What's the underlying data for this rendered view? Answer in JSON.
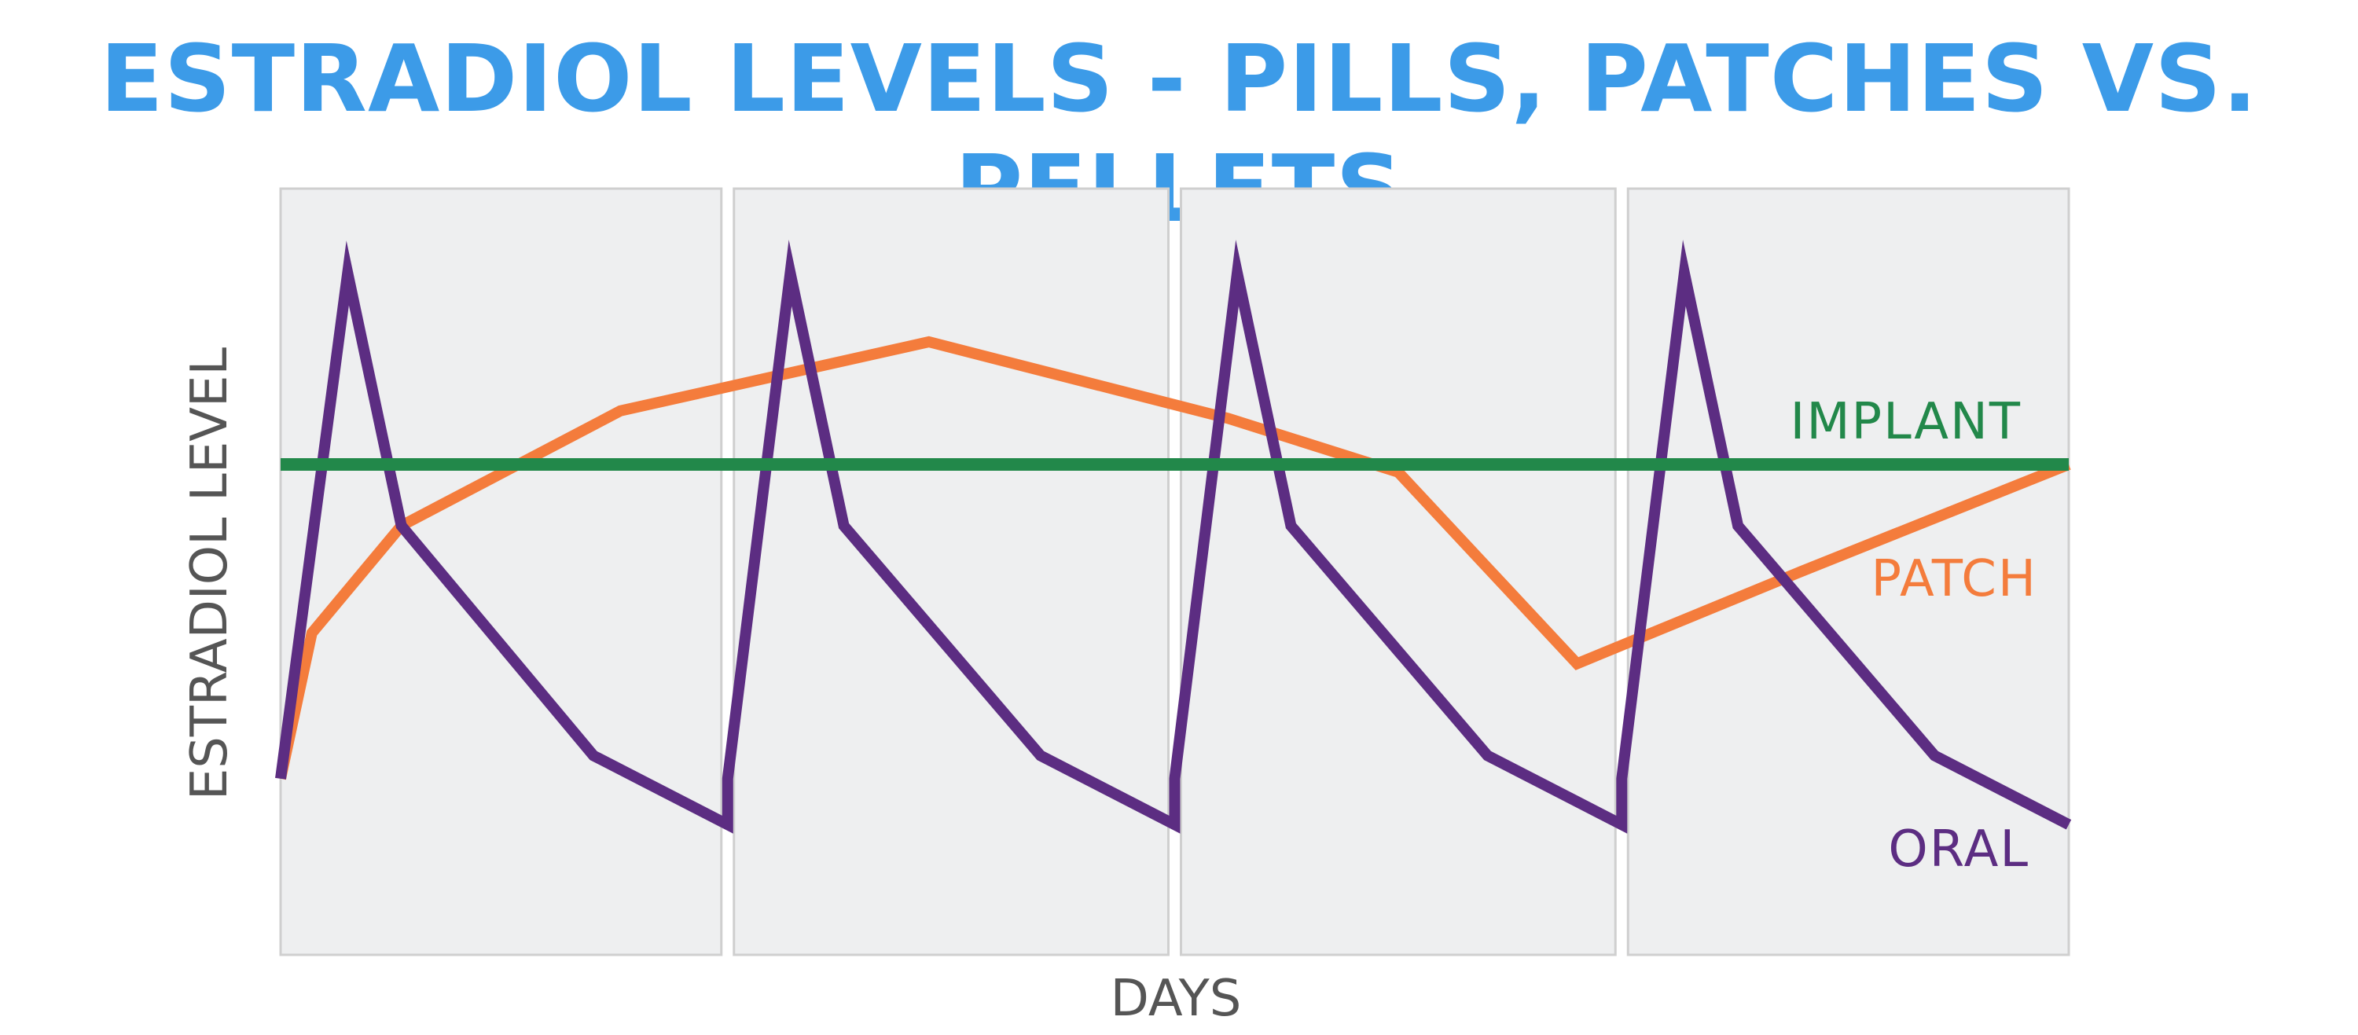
{
  "chart_data": {
    "type": "line",
    "title": "ESTRADIOL LEVELS - PILLS, PATCHES VS. PELLETS",
    "xlabel": "DAYS",
    "ylabel": "ESTRADIOL LEVEL",
    "xlim": [
      0,
      4
    ],
    "ylim": [
      0,
      1
    ],
    "grid": false,
    "panels": 4,
    "series": [
      {
        "name": "IMPLANT",
        "color": "#22884a",
        "x": [
          0,
          4
        ],
        "y": [
          0.64,
          0.64
        ]
      },
      {
        "name": "PATCH",
        "color": "#f47c3c",
        "x": [
          0,
          0.07,
          0.27,
          0.76,
          1.45,
          2.12,
          2.5,
          2.9,
          3.4,
          4.0
        ],
        "y": [
          0.23,
          0.42,
          0.56,
          0.71,
          0.8,
          0.7,
          0.63,
          0.38,
          0.5,
          0.64
        ]
      },
      {
        "name": "ORAL",
        "color": "#5c2d82",
        "x": [
          0,
          0.15,
          0.27,
          0.7,
          1.0,
          1.0,
          1.14,
          1.26,
          1.7,
          2.0,
          2.0,
          2.14,
          2.26,
          2.7,
          3.0,
          3.0,
          3.14,
          3.26,
          3.7,
          4.0
        ],
        "y": [
          0.23,
          0.89,
          0.56,
          0.26,
          0.17,
          0.23,
          0.89,
          0.56,
          0.26,
          0.17,
          0.23,
          0.89,
          0.56,
          0.26,
          0.17,
          0.23,
          0.89,
          0.56,
          0.26,
          0.17
        ]
      }
    ]
  },
  "colors": {
    "title": "#3c9be8",
    "panel_fill": "#eeeff0",
    "panel_border": "#cfcfcf",
    "axis_text": "#555555"
  }
}
